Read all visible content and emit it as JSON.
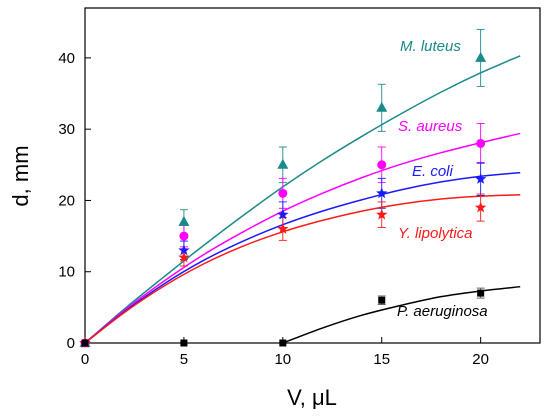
{
  "chart_data": {
    "type": "scatter",
    "title": "",
    "xlabel": "V, μL",
    "ylabel": "d, mm",
    "xlim": [
      0,
      23
    ],
    "ylim": [
      0,
      47
    ],
    "x_ticks": [
      0,
      5,
      10,
      15,
      20
    ],
    "y_ticks": [
      0,
      10,
      20,
      30,
      40
    ],
    "grid": false,
    "legend": "inline labels",
    "series": [
      {
        "name": "M. luteus",
        "color": "#1a8a8a",
        "marker": "triangle",
        "x": [
          0,
          5,
          10,
          15,
          20
        ],
        "y": [
          0,
          17,
          25,
          33,
          40
        ],
        "error": [
          0,
          1.7,
          2.5,
          3.3,
          4.0
        ],
        "fit": [
          [
            0,
            0
          ],
          [
            2,
            4.8
          ],
          [
            4,
            9.3
          ],
          [
            6,
            13.7
          ],
          [
            8,
            17.9
          ],
          [
            10,
            21.9
          ],
          [
            12,
            25.6
          ],
          [
            14,
            29.0
          ],
          [
            16,
            32.2
          ],
          [
            18,
            35.2
          ],
          [
            20,
            37.9
          ],
          [
            22,
            40.3
          ]
        ]
      },
      {
        "name": "S. aureus",
        "color": "#ff00ff",
        "marker": "circle",
        "x": [
          0,
          5,
          10,
          15,
          20
        ],
        "y": [
          0,
          15,
          21,
          25,
          28
        ],
        "error": [
          0,
          1.5,
          2.1,
          2.5,
          2.8
        ],
        "fit": [
          [
            0,
            0
          ],
          [
            2,
            4.6
          ],
          [
            4,
            8.7
          ],
          [
            6,
            12.4
          ],
          [
            8,
            15.6
          ],
          [
            10,
            18.5
          ],
          [
            12,
            21.0
          ],
          [
            14,
            23.2
          ],
          [
            16,
            25.1
          ],
          [
            18,
            26.7
          ],
          [
            20,
            28.1
          ],
          [
            22,
            29.4
          ]
        ]
      },
      {
        "name": "E. coli",
        "color": "#1a1aff",
        "marker": "star",
        "x": [
          0,
          5,
          10,
          15,
          20
        ],
        "y": [
          0,
          13,
          18,
          21,
          23
        ],
        "error": [
          0,
          1.3,
          1.8,
          2.1,
          2.3
        ],
        "fit": [
          [
            0,
            0
          ],
          [
            2,
            4.4
          ],
          [
            4,
            8.3
          ],
          [
            6,
            11.6
          ],
          [
            8,
            14.3
          ],
          [
            10,
            16.6
          ],
          [
            12,
            18.5
          ],
          [
            14,
            20.1
          ],
          [
            16,
            21.5
          ],
          [
            18,
            22.6
          ],
          [
            20,
            23.4
          ],
          [
            22,
            23.9
          ]
        ]
      },
      {
        "name": "Y. lipolytica",
        "color": "#ff1a1a",
        "marker": "star",
        "x": [
          0,
          5,
          10,
          15,
          20
        ],
        "y": [
          0,
          12,
          16,
          18,
          19
        ],
        "error": [
          0,
          1.2,
          1.6,
          1.8,
          1.9
        ],
        "fit": [
          [
            0,
            0
          ],
          [
            2,
            4.3
          ],
          [
            4,
            8.0
          ],
          [
            6,
            11.1
          ],
          [
            8,
            13.6
          ],
          [
            10,
            15.6
          ],
          [
            12,
            17.2
          ],
          [
            14,
            18.5
          ],
          [
            16,
            19.5
          ],
          [
            18,
            20.2
          ],
          [
            20,
            20.6
          ],
          [
            22,
            20.8
          ]
        ]
      },
      {
        "name": "P. aeruginosa",
        "color": "#000000",
        "marker": "square",
        "x": [
          0,
          5,
          10,
          15,
          20
        ],
        "y": [
          0,
          0,
          0,
          6,
          7
        ],
        "error": [
          0,
          0,
          0,
          0.6,
          0.7
        ],
        "fit": [
          [
            10,
            0
          ],
          [
            12,
            2.1
          ],
          [
            14,
            3.9
          ],
          [
            16,
            5.3
          ],
          [
            18,
            6.5
          ],
          [
            20,
            7.3
          ],
          [
            22,
            7.9
          ]
        ]
      }
    ]
  }
}
